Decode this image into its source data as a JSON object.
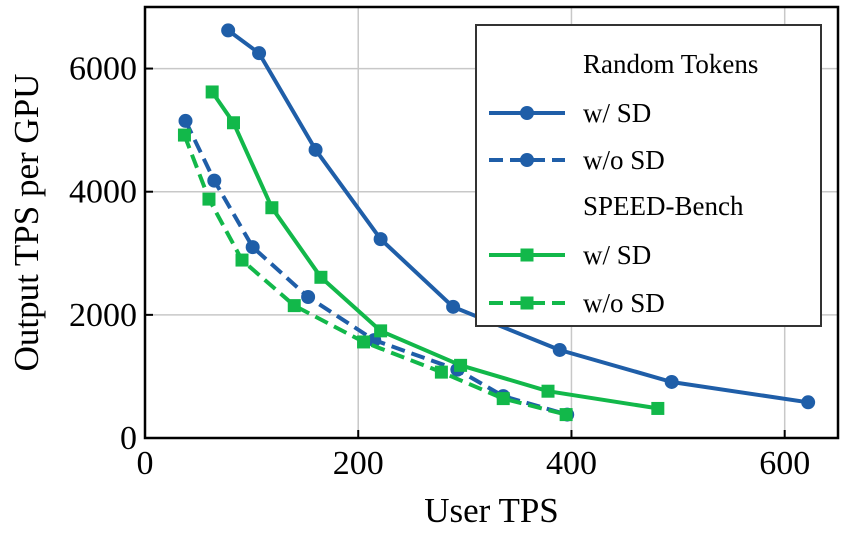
{
  "chart_data": {
    "type": "line",
    "xlabel": "User TPS",
    "ylabel": "Output TPS per GPU",
    "xlim": [
      0,
      650
    ],
    "ylim": [
      0,
      7000
    ],
    "x_ticks": [
      0,
      200,
      400,
      600
    ],
    "y_ticks": [
      0,
      2000,
      4000,
      6000
    ],
    "x_tick_labels": [
      "0",
      "200",
      "400",
      "600"
    ],
    "y_tick_labels": [
      "0",
      "2000",
      "4000",
      "6000"
    ],
    "grid": true,
    "legend_position": "top-right",
    "legend_groups": [
      {
        "title": "Random Tokens",
        "entries": [
          {
            "label": "w/ SD",
            "series": 0
          },
          {
            "label": "w/o SD",
            "series": 1
          }
        ]
      },
      {
        "title": "SPEED-Bench",
        "entries": [
          {
            "label": "w/ SD",
            "series": 2
          },
          {
            "label": "w/o SD",
            "series": 3
          }
        ]
      }
    ],
    "series": [
      {
        "color": "#1f5ea8",
        "marker": "circle",
        "dash": "solid",
        "x": [
          78,
          107,
          160,
          221,
          289,
          389,
          494,
          622
        ],
        "y": [
          6620,
          6250,
          4680,
          3230,
          2130,
          1430,
          910,
          580
        ]
      },
      {
        "color": "#1f5ea8",
        "marker": "circle",
        "dash": "dashed",
        "x": [
          38,
          65,
          101,
          153,
          215,
          293,
          336,
          396
        ],
        "y": [
          5150,
          4180,
          3100,
          2290,
          1590,
          1110,
          680,
          380
        ]
      },
      {
        "color": "#12b84a",
        "marker": "square",
        "dash": "solid",
        "x": [
          63,
          83,
          119,
          165,
          221,
          296,
          378,
          481
        ],
        "y": [
          5620,
          5120,
          3740,
          2610,
          1740,
          1180,
          760,
          480
        ]
      },
      {
        "color": "#12b84a",
        "marker": "square",
        "dash": "dashed",
        "x": [
          37,
          60,
          91,
          140,
          205,
          278,
          336,
          395
        ],
        "y": [
          4920,
          3880,
          2890,
          2150,
          1560,
          1070,
          640,
          380
        ]
      }
    ]
  }
}
